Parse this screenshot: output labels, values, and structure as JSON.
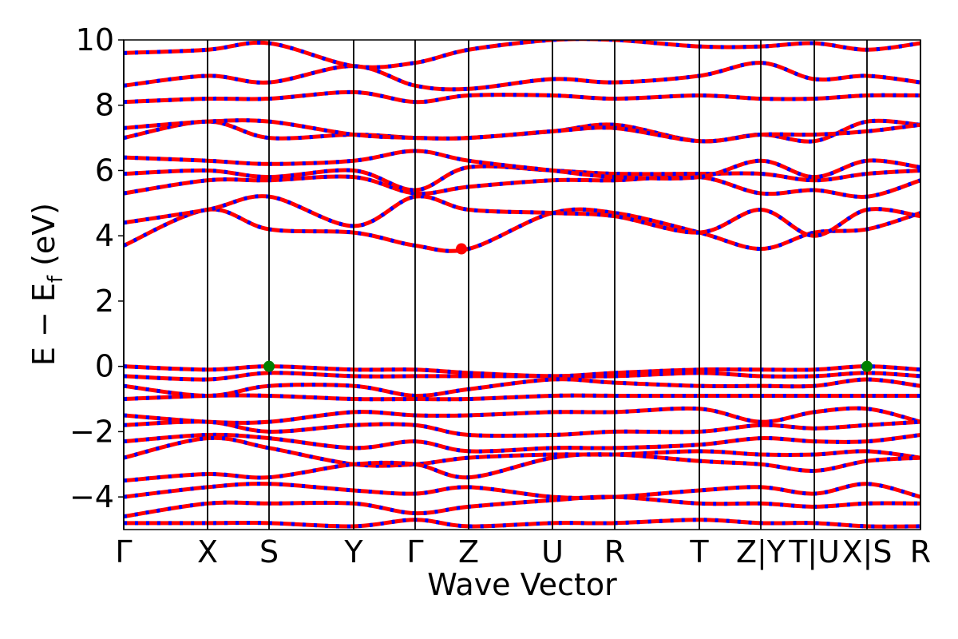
{
  "chart_data": {
    "type": "band",
    "xlabel": "Wave Vector",
    "ylabel": {
      "main": "E − E",
      "sub": "f",
      "unit": " (eV)"
    },
    "xlim": [
      0,
      9.98
    ],
    "ylim": [
      -5,
      10
    ],
    "xticks": [
      {
        "value": 0,
        "label": "Γ"
      },
      {
        "value": 1.05,
        "label": "X"
      },
      {
        "value": 1.82,
        "label": "S"
      },
      {
        "value": 2.88,
        "label": "Y"
      },
      {
        "value": 3.65,
        "label": "Γ"
      },
      {
        "value": 4.32,
        "label": "Z"
      },
      {
        "value": 5.37,
        "label": "U"
      },
      {
        "value": 6.15,
        "label": "R"
      },
      {
        "value": 7.21,
        "label": "T"
      },
      {
        "value": 7.98,
        "label": "Z|Y"
      },
      {
        "value": 8.65,
        "label": "T|U"
      },
      {
        "value": 9.31,
        "label": "X|S"
      },
      {
        "value": 9.98,
        "label": "R"
      }
    ],
    "yticks": [
      {
        "value": -4,
        "label": "−4"
      },
      {
        "value": -2,
        "label": "−2"
      },
      0,
      2,
      4,
      6,
      8,
      10
    ],
    "x": [
      0,
      1.05,
      1.82,
      2.88,
      3.65,
      4.32,
      5.37,
      6.15,
      7.21,
      7.98,
      8.65,
      9.31,
      9.98
    ],
    "line_color": "#ff0000",
    "dash_color": "#0000ff",
    "series": [
      {
        "values": [
          3.7,
          4.8,
          4.2,
          4.1,
          3.7,
          3.6,
          4.7,
          4.7,
          4.1,
          3.6,
          4.1,
          4.2,
          4.7
        ]
      },
      {
        "values": [
          4.4,
          4.8,
          5.2,
          4.3,
          5.2,
          4.8,
          4.7,
          4.6,
          4.1,
          4.8,
          4.0,
          4.8,
          4.6
        ]
      },
      {
        "values": [
          5.3,
          5.7,
          5.7,
          5.8,
          5.3,
          5.5,
          5.7,
          5.7,
          5.8,
          5.3,
          5.4,
          5.2,
          5.7
        ]
      },
      {
        "values": [
          5.9,
          6.0,
          5.8,
          6.0,
          5.4,
          6.1,
          6.0,
          5.9,
          5.9,
          5.9,
          5.7,
          5.9,
          6.0
        ]
      },
      {
        "values": [
          6.4,
          6.3,
          6.2,
          6.3,
          6.6,
          6.3,
          6.0,
          5.8,
          5.8,
          6.3,
          5.8,
          6.3,
          6.1
        ]
      },
      {
        "values": [
          7.0,
          7.5,
          7.0,
          7.1,
          7.0,
          7.0,
          7.2,
          7.4,
          6.9,
          7.1,
          6.9,
          7.5,
          7.4
        ]
      },
      {
        "values": [
          7.3,
          7.5,
          7.5,
          7.1,
          7.0,
          7.0,
          7.2,
          7.3,
          6.9,
          7.1,
          7.1,
          7.2,
          7.4
        ]
      },
      {
        "values": [
          8.1,
          8.2,
          8.2,
          8.4,
          8.1,
          8.3,
          8.3,
          8.2,
          8.3,
          8.2,
          8.2,
          8.3,
          8.3
        ]
      },
      {
        "values": [
          8.6,
          8.9,
          8.7,
          9.2,
          8.6,
          8.5,
          8.8,
          8.7,
          8.9,
          9.3,
          8.8,
          8.9,
          8.7
        ]
      },
      {
        "values": [
          9.6,
          9.7,
          9.9,
          9.2,
          9.3,
          9.7,
          10.0,
          10.0,
          9.8,
          9.8,
          9.9,
          9.7,
          9.9
        ]
      },
      {
        "values": [
          0,
          -0.1,
          0,
          -0.1,
          -0.1,
          -0.2,
          -0.3,
          -0.2,
          -0.1,
          -0.1,
          -0.1,
          0,
          -0.1
        ]
      },
      {
        "values": [
          -0.3,
          -0.4,
          -0.2,
          -0.3,
          -0.3,
          -0.3,
          -0.3,
          -0.3,
          -0.2,
          -0.3,
          -0.3,
          -0.2,
          -0.3
        ]
      },
      {
        "values": [
          -0.6,
          -0.9,
          -0.6,
          -0.6,
          -0.9,
          -0.7,
          -0.4,
          -0.5,
          -0.6,
          -0.6,
          -0.6,
          -0.4,
          -0.6
        ]
      },
      {
        "values": [
          -1.0,
          -0.9,
          -0.9,
          -1.0,
          -1.0,
          -1.0,
          -0.9,
          -0.9,
          -0.9,
          -0.9,
          -0.9,
          -0.9,
          -0.9
        ]
      },
      {
        "values": [
          -1.5,
          -1.7,
          -1.7,
          -1.4,
          -1.5,
          -1.5,
          -1.4,
          -1.4,
          -1.3,
          -1.7,
          -1.4,
          -1.3,
          -1.7
        ]
      },
      {
        "values": [
          -1.8,
          -1.7,
          -2.0,
          -1.8,
          -1.8,
          -2.1,
          -2.1,
          -2.0,
          -2.0,
          -1.8,
          -1.9,
          -1.8,
          -1.7
        ]
      },
      {
        "values": [
          -2.3,
          -2.1,
          -2.2,
          -2.5,
          -2.3,
          -2.6,
          -2.5,
          -2.5,
          -2.4,
          -2.2,
          -2.3,
          -2.3,
          -2.1
        ]
      },
      {
        "values": [
          -2.8,
          -2.2,
          -2.5,
          -3.0,
          -3.0,
          -2.8,
          -2.7,
          -2.7,
          -2.6,
          -2.7,
          -2.7,
          -2.6,
          -2.8
        ]
      },
      {
        "values": [
          -3.5,
          -3.3,
          -3.4,
          -3.0,
          -3.0,
          -3.4,
          -2.8,
          -2.7,
          -2.9,
          -3.0,
          -3.2,
          -2.9,
          -2.8
        ]
      },
      {
        "values": [
          -4.0,
          -3.7,
          -3.6,
          -3.8,
          -3.9,
          -3.7,
          -4.0,
          -4.0,
          -3.8,
          -3.7,
          -3.9,
          -3.6,
          -4.0
        ]
      },
      {
        "values": [
          -4.6,
          -4.2,
          -4.2,
          -4.2,
          -4.5,
          -4.3,
          -4.1,
          -4.0,
          -4.2,
          -4.2,
          -4.3,
          -4.2,
          -4.2
        ]
      },
      {
        "values": [
          -4.8,
          -4.8,
          -4.8,
          -4.9,
          -4.7,
          -4.9,
          -4.8,
          -4.8,
          -4.7,
          -4.8,
          -4.8,
          -4.9,
          -4.9
        ]
      }
    ],
    "points": [
      {
        "x": 1.82,
        "y": 0,
        "color": "#008000"
      },
      {
        "x": 9.31,
        "y": 0,
        "color": "#008000"
      },
      {
        "x": 4.23,
        "y": 3.6,
        "color": "#ff0000"
      }
    ]
  }
}
